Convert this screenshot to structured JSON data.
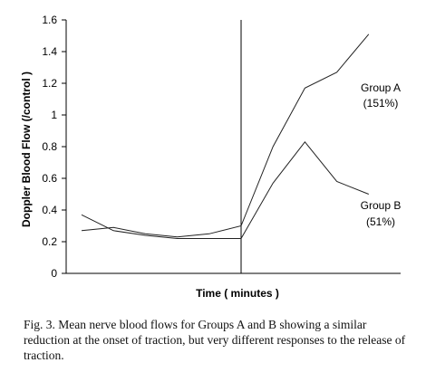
{
  "chart_data": {
    "type": "line",
    "title": "",
    "xlabel": "Time ( minutes )",
    "ylabel": "Doppler Blood Flow (/control )",
    "ylim": [
      0,
      1.6
    ],
    "yticks": [
      "0",
      "0.2",
      "0.4",
      "0.6",
      "0.8",
      "1",
      "1.2",
      "1.4",
      "1.6"
    ],
    "xticks_shown": false,
    "traction_release_marker": true,
    "x": [
      0,
      1,
      2,
      3,
      4,
      5,
      6,
      7,
      8,
      9,
      10
    ],
    "series": [
      {
        "name": "Group A",
        "label_line1": "Group A",
        "label_line2": "(151%)",
        "values": [
          0.27,
          0.29,
          0.25,
          0.23,
          0.25,
          0.3,
          0.8,
          1.17,
          1.27,
          1.51,
          null
        ]
      },
      {
        "name": "Group B",
        "label_line1": "Group B",
        "label_line2": "(51%)",
        "values": [
          0.37,
          0.27,
          0.24,
          0.22,
          0.22,
          0.22,
          0.57,
          0.83,
          0.58,
          0.5,
          null
        ]
      }
    ],
    "line_color": "#222222"
  },
  "caption": "Fig. 3. Mean nerve blood flows for Groups A and B showing a similar reduction at the onset of traction, but very different responses to the release of traction."
}
